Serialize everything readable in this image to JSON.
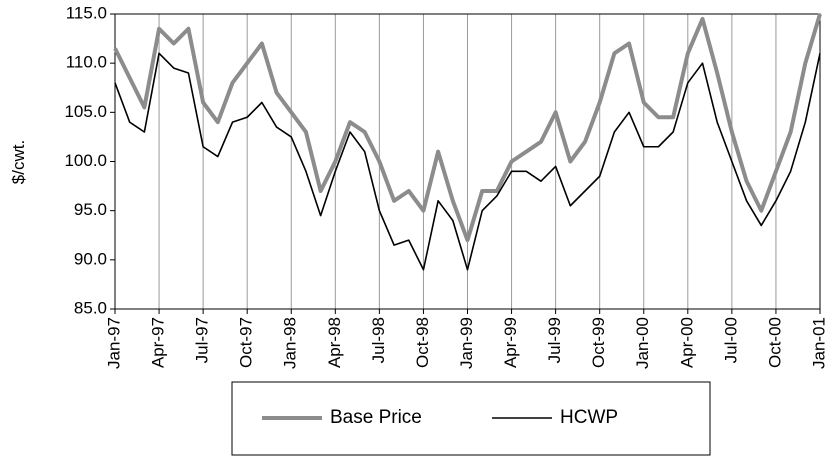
{
  "chart_data": {
    "type": "line",
    "y_label": "$/cwt.",
    "categories": [
      "Jan-97",
      null,
      null,
      "Apr-97",
      null,
      null,
      "Jul-97",
      null,
      null,
      "Oct-97",
      null,
      null,
      "Jan-98",
      null,
      null,
      "Apr-98",
      null,
      null,
      "Jul-98",
      null,
      null,
      "Oct-98",
      null,
      null,
      "Jan-99",
      null,
      null,
      "Apr-99",
      null,
      null,
      "Jul-99",
      null,
      null,
      "Oct-99",
      null,
      null,
      "Jan-00",
      null,
      null,
      "Apr-00",
      null,
      null,
      "Jul-00",
      null,
      null,
      "Oct-00",
      null,
      null,
      "Jan-01"
    ],
    "series": [
      {
        "name": "Base Price",
        "color": "#8c8c8c",
        "width": 4,
        "values": [
          111.5,
          108.5,
          105.5,
          113.5,
          112,
          113.5,
          106,
          104,
          108,
          110,
          112,
          107,
          105,
          103,
          97,
          100,
          104,
          103,
          100,
          96,
          97,
          95,
          101,
          96,
          92,
          97,
          97,
          100,
          101,
          102,
          105,
          100,
          102,
          106,
          111,
          112,
          106,
          104.5,
          104.5,
          111,
          114.5,
          109,
          103,
          98,
          95,
          99,
          103,
          110,
          115
        ]
      },
      {
        "name": "HCWP",
        "color": "#000000",
        "width": 1.6,
        "values": [
          108,
          104,
          103,
          111,
          109.5,
          109,
          101.5,
          100.5,
          104,
          104.5,
          106,
          103.5,
          102.5,
          99,
          94.5,
          99,
          103,
          101,
          95,
          91.5,
          92,
          89,
          96,
          94,
          89,
          95,
          96.5,
          99,
          99,
          98,
          99.5,
          95.5,
          97,
          98.5,
          103,
          105,
          101.5,
          101.5,
          103,
          108,
          110,
          104,
          100,
          96,
          93.5,
          96,
          99,
          104,
          111
        ]
      }
    ],
    "ylim": [
      85,
      115
    ],
    "yticks": [
      {
        "value": 85,
        "label": "85.0"
      },
      {
        "value": 90,
        "label": "90.0"
      },
      {
        "value": 95,
        "label": "95.0"
      },
      {
        "value": 100,
        "label": "100.0"
      },
      {
        "value": 105,
        "label": "105.0"
      },
      {
        "value": 110,
        "label": "110.0"
      },
      {
        "value": 115,
        "label": "115.0"
      }
    ],
    "grid": "x",
    "legend": "bottom"
  }
}
